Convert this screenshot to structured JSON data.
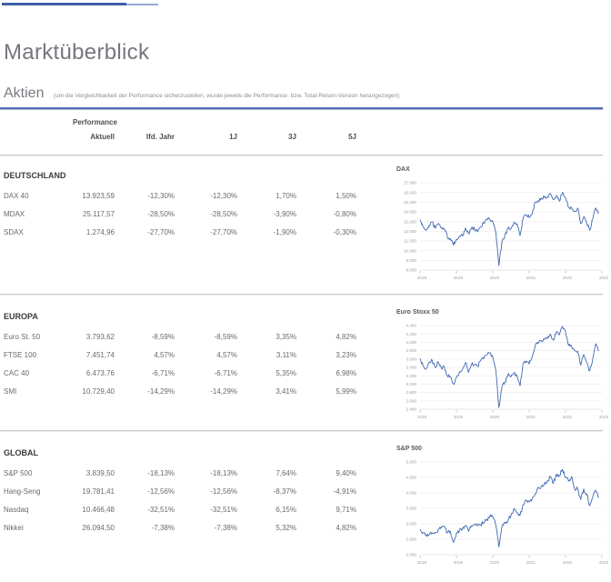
{
  "page": {
    "title": "Marktüberblick",
    "section_title": "Aktien",
    "section_note": "(um die Vergleichbarkeit der Performance sicherzustellen, wurde jeweils die Performance- bzw. Total-Return-Version herangezogen)"
  },
  "colors": {
    "accent_blue": "#4e6db2",
    "accent_blue_light": "#aab9dd",
    "chart_line": "#3f68b4"
  },
  "table": {
    "group_header": "Performance",
    "columns": [
      "Aktuell",
      "lfd. Jahr",
      "1J",
      "3J",
      "5J"
    ],
    "sections": [
      {
        "name": "DEUTSCHLAND",
        "rows": [
          {
            "label": "DAX 40",
            "values": [
              "13.923,59",
              "-12,30%",
              "-12,30%",
              "1,70%",
              "1,50%"
            ]
          },
          {
            "label": "MDAX",
            "values": [
              "25.117,57",
              "-28,50%",
              "-28,50%",
              "-3,90%",
              "-0,80%"
            ]
          },
          {
            "label": "SDAX",
            "values": [
              "1.274,96",
              "-27,70%",
              "-27,70%",
              "-1,90%",
              "-0,30%"
            ]
          }
        ]
      },
      {
        "name": "EUROPA",
        "rows": [
          {
            "label": "Euro St. 50",
            "values": [
              "3.793,62",
              "-8,59%",
              "-8,59%",
              "3,35%",
              "4,82%"
            ]
          },
          {
            "label": "FTSE 100",
            "values": [
              "7.451,74",
              "4,57%",
              "4,57%",
              "3,11%",
              "3,23%"
            ]
          },
          {
            "label": "CAC 40",
            "values": [
              "6.473,76",
              "-6,71%",
              "-6,71%",
              "5,35%",
              "6,98%"
            ]
          },
          {
            "label": "SMI",
            "values": [
              "10.729,40",
              "-14,29%",
              "-14,29%",
              "3,41%",
              "5,99%"
            ]
          }
        ]
      },
      {
        "name": "GLOBAL",
        "rows": [
          {
            "label": "S&P 500",
            "values": [
              "3.839,50",
              "-18,13%",
              "-18,13%",
              "7,64%",
              "9,40%"
            ]
          },
          {
            "label": "Hang-Seng",
            "values": [
              "19.781,41",
              "-12,56%",
              "-12,56%",
              "-8,37%",
              "-4,91%"
            ]
          },
          {
            "label": "Nasdaq",
            "values": [
              "10.466,48",
              "-32,51%",
              "-32,51%",
              "6,15%",
              "9,71%"
            ]
          },
          {
            "label": "Nikkei",
            "values": [
              "26.094,50",
              "-7,38%",
              "-7,38%",
              "5,32%",
              "4,82%"
            ]
          }
        ]
      }
    ]
  },
  "chart_data": [
    {
      "type": "line",
      "title": "DAX",
      "x_start": "2018-01",
      "x_end": "2022-12",
      "x_labels": [
        "2018",
        "2019",
        "2020",
        "2021",
        "2022",
        "2023"
      ],
      "ylim": [
        8000,
        17000
      ],
      "ystep": 1000,
      "line_color": "#3f68b4",
      "grid": true,
      "legend": "none",
      "monthly_values": [
        13190,
        12440,
        12100,
        12610,
        12950,
        12310,
        12810,
        12360,
        12250,
        11450,
        11250,
        10560,
        11180,
        11510,
        11530,
        12340,
        11730,
        12400,
        12190,
        11940,
        12430,
        12870,
        13240,
        13250,
        12980,
        11890,
        8450,
        10860,
        11590,
        12310,
        12280,
        12950,
        12760,
        11560,
        13290,
        13720,
        13430,
        13790,
        15010,
        15140,
        15420,
        15530,
        15540,
        15900,
        15260,
        15690,
        15100,
        16020,
        15470,
        14460,
        14410,
        14080,
        14390,
        12780,
        13480,
        12830,
        12110,
        13250,
        14400,
        13924
      ]
    },
    {
      "type": "line",
      "title": "Euro Stoxx 50",
      "x_start": "2018-01",
      "x_end": "2022-12",
      "x_labels": [
        "2018",
        "2019",
        "2020",
        "2021",
        "2022",
        "2023"
      ],
      "ylim": [
        2400,
        4400
      ],
      "ystep": 200,
      "line_color": "#3f68b4",
      "grid": true,
      "legend": "none",
      "monthly_values": [
        3610,
        3440,
        3360,
        3520,
        3570,
        3395,
        3525,
        3393,
        3399,
        3200,
        3173,
        3001,
        3160,
        3298,
        3352,
        3515,
        3280,
        3474,
        3467,
        3427,
        3569,
        3604,
        3704,
        3745,
        3640,
        3329,
        2440,
        2928,
        3050,
        3234,
        3174,
        3273,
        3194,
        2958,
        3493,
        3553,
        3481,
        3636,
        3919,
        3975,
        4039,
        4064,
        4089,
        4196,
        4048,
        4251,
        4180,
        4380,
        4250,
        3924,
        3903,
        3803,
        3789,
        3455,
        3708,
        3517,
        3318,
        3609,
        3965,
        3794
      ]
    },
    {
      "type": "line",
      "title": "S&P 500",
      "x_start": "2018-01",
      "x_end": "2022-12",
      "x_labels": [
        "2018",
        "2019",
        "2020",
        "2021",
        "2022",
        "2023"
      ],
      "ylim": [
        2000,
        5000
      ],
      "ystep": 500,
      "line_color": "#3f68b4",
      "grid": true,
      "legend": "none",
      "monthly_values": [
        2824,
        2714,
        2641,
        2648,
        2705,
        2718,
        2816,
        2902,
        2914,
        2712,
        2760,
        2400,
        2704,
        2784,
        2834,
        2946,
        2752,
        2942,
        2980,
        2926,
        2977,
        3038,
        3141,
        3231,
        3226,
        2954,
        2250,
        2912,
        3044,
        3100,
        3271,
        3500,
        3363,
        3270,
        3622,
        3756,
        3714,
        3811,
        3973,
        4181,
        4204,
        4298,
        4395,
        4523,
        4308,
        4605,
        4567,
        4766,
        4516,
        4374,
        4530,
        4132,
        4132,
        3785,
        4130,
        3955,
        3586,
        3872,
        4080,
        3840
      ]
    }
  ]
}
